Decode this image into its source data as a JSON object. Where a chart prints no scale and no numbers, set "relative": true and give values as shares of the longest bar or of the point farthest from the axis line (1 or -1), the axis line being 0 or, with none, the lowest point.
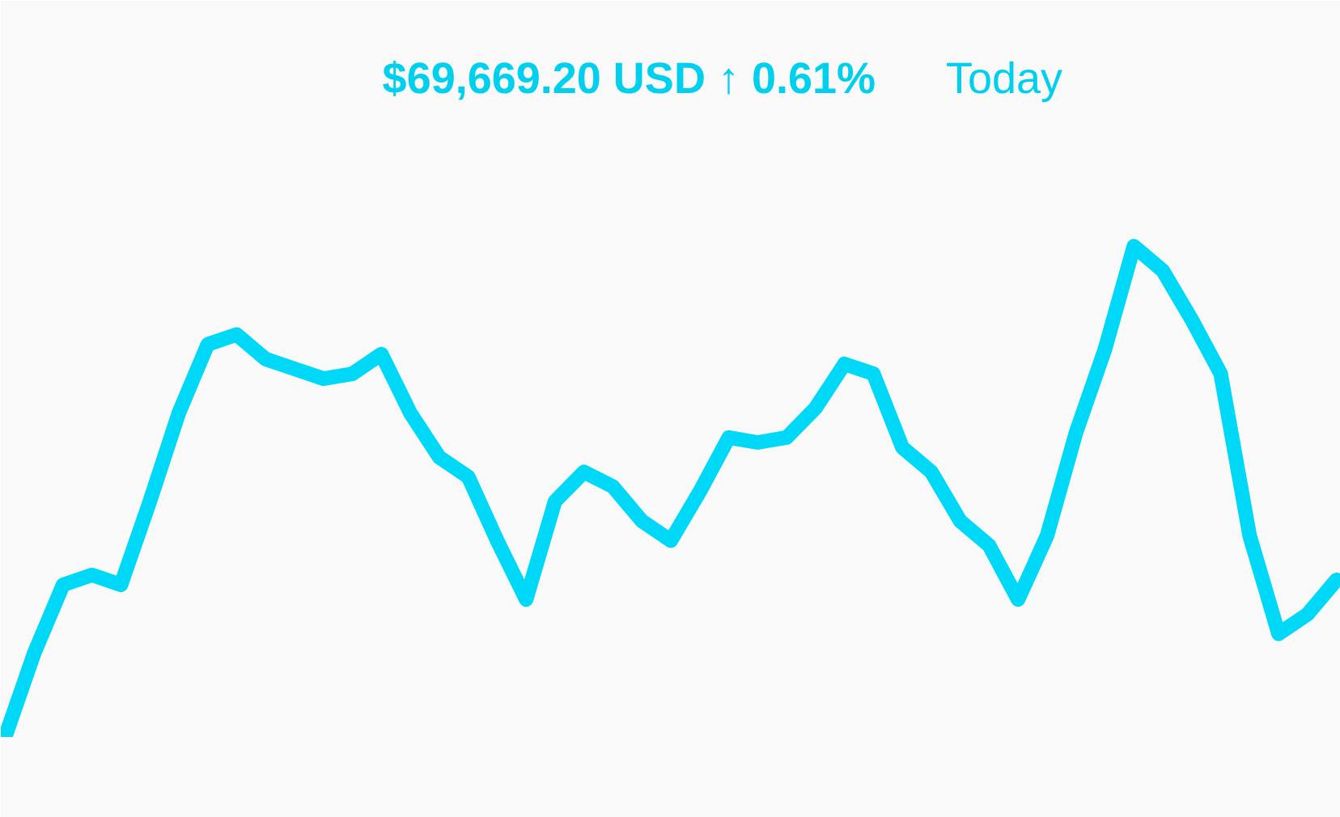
{
  "chart_data": {
    "type": "line",
    "title": "$69,669.20 USD  ↑ 0.61%",
    "subtitle": "Today",
    "relative": true,
    "categories": [
      null,
      null,
      null,
      null,
      null,
      null,
      null,
      null,
      null,
      null,
      null,
      null,
      null,
      null,
      null,
      null,
      null,
      null,
      null,
      null,
      null,
      null,
      null,
      null,
      null,
      null,
      null,
      null,
      null,
      null,
      null,
      null,
      null,
      null,
      null,
      null,
      null,
      null,
      null,
      null,
      null,
      null,
      null,
      null,
      null,
      null,
      null
    ],
    "color": "#00d8f8",
    "values": [
      0,
      0.17,
      0.31,
      0.33,
      0.31,
      0.48,
      0.66,
      0.8,
      0.82,
      0.77,
      0.75,
      0.73,
      0.74,
      0.78,
      0.66,
      0.57,
      0.53,
      0.4,
      0.28,
      0.48,
      0.54,
      0.51,
      0.44,
      0.4,
      0.5,
      0.61,
      0.6,
      0.61,
      0.67,
      0.76,
      0.74,
      0.59,
      0.54,
      0.44,
      0.39,
      0.28,
      0.41,
      0.62,
      0.79,
      1.0,
      0.95,
      0.85,
      0.74,
      0.41,
      0.21,
      0.25,
      0.32
    ]
  }
}
